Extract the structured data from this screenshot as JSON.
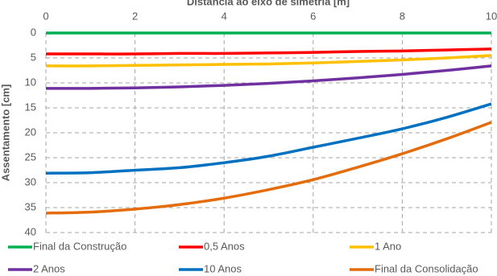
{
  "chart_data": {
    "type": "line",
    "title": "Distância ao eixo de simetria [m]",
    "y_label": "Assentamento [cm]",
    "x": [
      0,
      1,
      2,
      3,
      4,
      5,
      6,
      7,
      8,
      9,
      10
    ],
    "xlim": [
      0,
      10
    ],
    "xticks": [
      0,
      2,
      4,
      6,
      8,
      10
    ],
    "ylim": [
      0,
      40
    ],
    "yticks": [
      0,
      5,
      10,
      15,
      20,
      25,
      30,
      35,
      40
    ],
    "y_inverted": true,
    "x_axis_top": true,
    "grid": true,
    "legend": "bottom",
    "series": [
      {
        "name": "Final da Construção",
        "color": "#00b050",
        "values": [
          0,
          0,
          0,
          0,
          0,
          0,
          0,
          0,
          0,
          0,
          0
        ]
      },
      {
        "name": "0,5 Anos",
        "color": "#ff0000",
        "values": [
          4.2,
          4.2,
          4.2,
          4.1,
          4.1,
          4.0,
          3.9,
          3.7,
          3.6,
          3.4,
          3.2
        ]
      },
      {
        "name": "1 Ano",
        "color": "#ffc000",
        "values": [
          6.6,
          6.6,
          6.5,
          6.4,
          6.3,
          6.2,
          6.0,
          5.7,
          5.4,
          5.0,
          4.5
        ]
      },
      {
        "name": "2 Anos",
        "color": "#7030a0",
        "values": [
          11.1,
          11.1,
          11.0,
          10.8,
          10.5,
          10.1,
          9.6,
          9.0,
          8.3,
          7.5,
          6.6
        ]
      },
      {
        "name": "10 Anos",
        "color": "#0070c0",
        "values": [
          28.1,
          28.0,
          27.5,
          27.0,
          26.0,
          24.7,
          22.9,
          21.1,
          19.2,
          16.9,
          14.2
        ]
      },
      {
        "name": "Final da Consolidação",
        "color": "#e46c0a",
        "values": [
          36.1,
          35.9,
          35.3,
          34.4,
          33.1,
          31.4,
          29.4,
          26.9,
          24.2,
          21.2,
          17.9
        ]
      }
    ]
  }
}
